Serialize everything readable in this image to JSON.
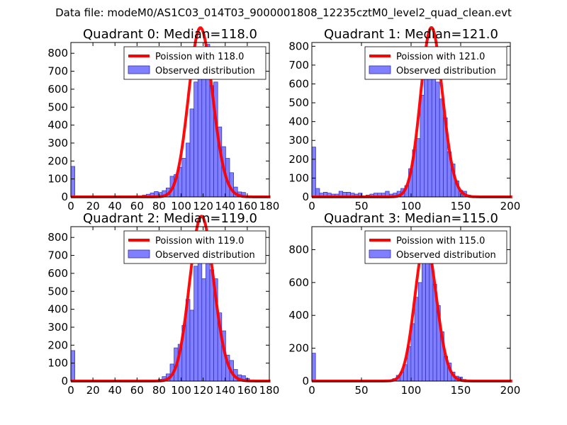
{
  "figure_title": "Data file: modeM0/AS1C03_014T03_9000001808_12235cztM0_level2_quad_clean.evt",
  "legend": {
    "poisson_prefix": "Poission with ",
    "observed": "Observed distribution"
  },
  "colors": {
    "bar_fill": "#7f7fff",
    "bar_edge": "#2b2bbf",
    "poisson": "#ff0000"
  },
  "chart_data": [
    {
      "type": "bar",
      "title": "Quadrant 0: Median=118.0",
      "median": 118.0,
      "poisson_label": "118.0",
      "bin_width": 3.6,
      "xlim": [
        0,
        180
      ],
      "ylim": [
        0,
        860
      ],
      "xticks": [
        0,
        20,
        40,
        60,
        80,
        100,
        120,
        140,
        160,
        180
      ],
      "yticks": [
        0,
        100,
        200,
        300,
        400,
        500,
        600,
        700,
        800
      ],
      "bins": [
        [
          0,
          170
        ],
        [
          57.6,
          5
        ],
        [
          61.2,
          3
        ],
        [
          64.8,
          10
        ],
        [
          68.4,
          15
        ],
        [
          72,
          22
        ],
        [
          75.6,
          30
        ],
        [
          79.2,
          25
        ],
        [
          82.8,
          35
        ],
        [
          86.4,
          50
        ],
        [
          90,
          115
        ],
        [
          93.6,
          125
        ],
        [
          97.2,
          165
        ],
        [
          100.8,
          215
        ],
        [
          104.4,
          300
        ],
        [
          108,
          490
        ],
        [
          111.6,
          640
        ],
        [
          115.2,
          770
        ],
        [
          118.8,
          700
        ],
        [
          122.4,
          850
        ],
        [
          126,
          620
        ],
        [
          129.6,
          640
        ],
        [
          133.2,
          390
        ],
        [
          136.8,
          280
        ],
        [
          140.4,
          215
        ],
        [
          144,
          135
        ],
        [
          147.6,
          55
        ],
        [
          151.2,
          28
        ],
        [
          154.8,
          25
        ],
        [
          158.4,
          5
        ]
      ]
    },
    {
      "type": "bar",
      "title": "Quadrant 1: Median=121.0",
      "median": 121.0,
      "poisson_label": "121.0",
      "bin_width": 3.9,
      "xlim": [
        0,
        200
      ],
      "ylim": [
        0,
        820
      ],
      "xticks": [
        0,
        50,
        100,
        150,
        200
      ],
      "yticks": [
        0,
        100,
        200,
        300,
        400,
        500,
        600,
        700,
        800
      ],
      "bins": [
        [
          0,
          265
        ],
        [
          3.9,
          45
        ],
        [
          7.8,
          20
        ],
        [
          11.7,
          25
        ],
        [
          15.6,
          20
        ],
        [
          19.5,
          15
        ],
        [
          23.4,
          15
        ],
        [
          27.3,
          30
        ],
        [
          31.2,
          25
        ],
        [
          35.1,
          25
        ],
        [
          39,
          20
        ],
        [
          42.9,
          15
        ],
        [
          46.8,
          20
        ],
        [
          50.7,
          5
        ],
        [
          54.6,
          10
        ],
        [
          58.5,
          15
        ],
        [
          62.4,
          20
        ],
        [
          66.3,
          20
        ],
        [
          70.2,
          20
        ],
        [
          74.1,
          30
        ],
        [
          78,
          15
        ],
        [
          81.9,
          20
        ],
        [
          85.8,
          30
        ],
        [
          89.7,
          45
        ],
        [
          93.6,
          60
        ],
        [
          97.5,
          150
        ],
        [
          101.4,
          250
        ],
        [
          105.3,
          310
        ],
        [
          109.2,
          540
        ],
        [
          113.1,
          640
        ],
        [
          117,
          770
        ],
        [
          120.9,
          740
        ],
        [
          124.8,
          610
        ],
        [
          128.7,
          520
        ],
        [
          132.6,
          420
        ],
        [
          136.5,
          240
        ],
        [
          140.4,
          175
        ],
        [
          144.3,
          85
        ],
        [
          148.2,
          35
        ],
        [
          152.1,
          30
        ],
        [
          156,
          10
        ],
        [
          159.9,
          5
        ]
      ]
    },
    {
      "type": "bar",
      "title": "Quadrant 2: Median=119.0",
      "median": 119.0,
      "poisson_label": "119.0",
      "bin_width": 3.6,
      "xlim": [
        0,
        180
      ],
      "ylim": [
        0,
        860
      ],
      "xticks": [
        0,
        20,
        40,
        60,
        80,
        100,
        120,
        140,
        160,
        180
      ],
      "yticks": [
        0,
        100,
        200,
        300,
        400,
        500,
        600,
        700,
        800
      ],
      "bins": [
        [
          0,
          170
        ],
        [
          79.2,
          10
        ],
        [
          82.8,
          25
        ],
        [
          86.4,
          40
        ],
        [
          90,
          95
        ],
        [
          93.6,
          185
        ],
        [
          97.2,
          205
        ],
        [
          100.8,
          310
        ],
        [
          104.4,
          455
        ],
        [
          108,
          395
        ],
        [
          111.6,
          640
        ],
        [
          115.2,
          800
        ],
        [
          118.8,
          570
        ],
        [
          122.4,
          820
        ],
        [
          126,
          620
        ],
        [
          129.6,
          570
        ],
        [
          133.2,
          380
        ],
        [
          136.8,
          280
        ],
        [
          140.4,
          145
        ],
        [
          144,
          115
        ],
        [
          147.6,
          65
        ],
        [
          151.2,
          35
        ],
        [
          154.8,
          30
        ],
        [
          158.4,
          15
        ]
      ]
    },
    {
      "type": "bar",
      "title": "Quadrant 3: Median=115.0",
      "median": 115.0,
      "poisson_label": "115.0",
      "bin_width": 3.7,
      "xlim": [
        0,
        200
      ],
      "ylim": [
        0,
        940
      ],
      "xticks": [
        0,
        50,
        100,
        150,
        200
      ],
      "yticks": [
        0,
        200,
        400,
        600,
        800
      ],
      "bins": [
        [
          0,
          170
        ],
        [
          77.7,
          5
        ],
        [
          81.4,
          15
        ],
        [
          85.1,
          35
        ],
        [
          88.8,
          55
        ],
        [
          92.5,
          100
        ],
        [
          96.2,
          210
        ],
        [
          99.9,
          350
        ],
        [
          103.6,
          510
        ],
        [
          107.3,
          600
        ],
        [
          111,
          780
        ],
        [
          114.7,
          880
        ],
        [
          118.4,
          770
        ],
        [
          122.1,
          590
        ],
        [
          125.8,
          460
        ],
        [
          129.5,
          300
        ],
        [
          133.2,
          150
        ],
        [
          136.9,
          110
        ],
        [
          140.6,
          55
        ],
        [
          144.3,
          30
        ],
        [
          148,
          25
        ],
        [
          151.7,
          10
        ]
      ]
    }
  ]
}
